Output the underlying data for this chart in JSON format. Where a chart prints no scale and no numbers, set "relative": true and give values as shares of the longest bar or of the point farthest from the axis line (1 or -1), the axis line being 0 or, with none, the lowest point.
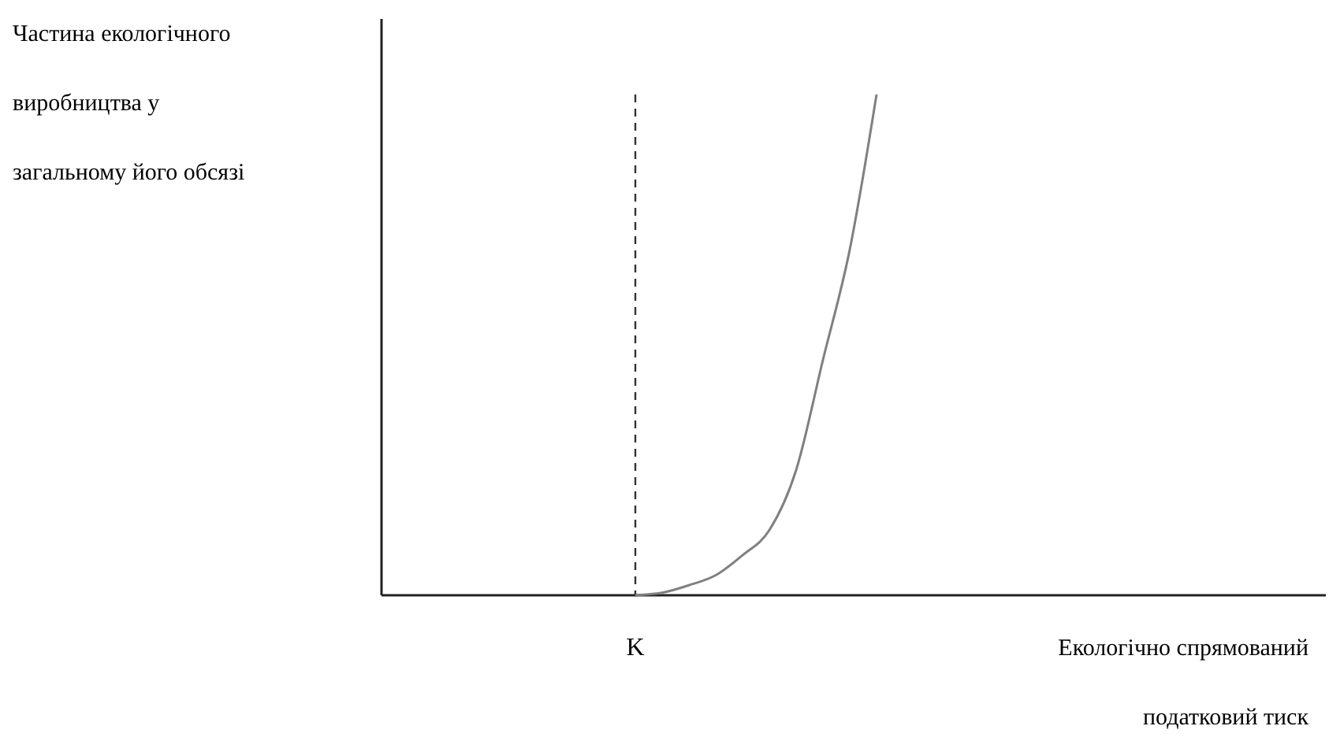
{
  "chart_data": {
    "type": "line",
    "relative": true,
    "ylabel": "Частина екологічного виробництва у загальному його обсязі",
    "xlabel": "Екологічно спрямований податковий тиск",
    "categories": [
      null,
      null,
      null,
      null,
      null,
      null,
      null,
      null,
      null,
      null,
      null,
      null,
      null,
      null,
      null,
      null,
      null,
      null,
      null,
      null,
      null,
      null,
      null,
      null,
      null,
      null,
      null,
      null,
      null,
      null,
      null,
      null,
      null,
      null,
      null
    ],
    "series": [
      {
        "color": "#808080",
        "values": [
          null,
          null,
          null,
          null,
          null,
          null,
          null,
          null,
          null,
          0,
          0.005,
          0.02,
          0.04,
          0.08,
          0.13,
          0.25,
          0.47,
          0.69,
          1,
          null,
          null,
          null,
          null,
          null,
          null,
          null,
          null,
          null,
          null,
          null,
          null,
          null,
          null,
          null,
          null
        ]
      }
    ],
    "ref_lines": [
      {
        "axis": "x",
        "value": "K",
        "line_style": "dashed",
        "color": "#333333"
      }
    ],
    "grid": false,
    "marker": "none",
    "line_style": "solid"
  }
}
